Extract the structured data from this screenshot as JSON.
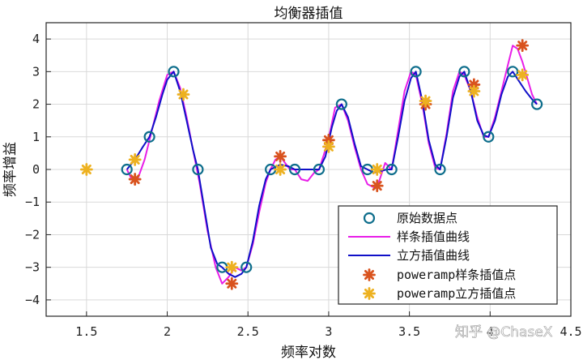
{
  "chart_data": {
    "type": "line",
    "title": "均衡器插值",
    "xlabel": "频率对数",
    "ylabel": "频率增益",
    "xlim": [
      1.25,
      4.5
    ],
    "ylim": [
      -4.5,
      4.5
    ],
    "xticks": [
      1.5,
      2,
      2.5,
      3,
      3.5,
      4,
      4.5
    ],
    "xtick_labels": [
      "1.5",
      "2",
      "2.5",
      "3",
      "3.5",
      "4",
      "4.5"
    ],
    "yticks": [
      -4,
      -3,
      -2,
      -1,
      0,
      1,
      2,
      3,
      4
    ],
    "ytick_labels": [
      "−4",
      "−3",
      "−2",
      "−1",
      "0",
      "1",
      "2",
      "3",
      "4"
    ],
    "grid": true,
    "legend_position": "bottom-right",
    "series": [
      {
        "name": "原始数据点",
        "kind": "markers-circle",
        "color": "#0e6e8c",
        "x": [
          1.75,
          1.89,
          2.04,
          2.19,
          2.34,
          2.49,
          2.64,
          2.79,
          2.94,
          3.08,
          3.24,
          3.39,
          3.54,
          3.69,
          3.84,
          3.99,
          4.14,
          4.29
        ],
        "y": [
          0,
          1,
          3,
          0,
          -3,
          -3,
          0,
          0,
          0,
          2,
          0,
          0,
          3,
          0,
          3,
          1,
          3,
          2
        ]
      },
      {
        "name": "样条插值曲线",
        "kind": "line",
        "color": "#e81ee8",
        "x": [
          1.75,
          1.78,
          1.82,
          1.86,
          1.9,
          1.95,
          2.0,
          2.04,
          2.08,
          2.12,
          2.16,
          2.2,
          2.25,
          2.3,
          2.34,
          2.38,
          2.42,
          2.46,
          2.49,
          2.53,
          2.57,
          2.61,
          2.64,
          2.67,
          2.7,
          2.73,
          2.76,
          2.79,
          2.83,
          2.87,
          2.91,
          2.94,
          2.97,
          3.0,
          3.04,
          3.08,
          3.12,
          3.16,
          3.2,
          3.24,
          3.28,
          3.31,
          3.35,
          3.39,
          3.43,
          3.47,
          3.51,
          3.54,
          3.58,
          3.62,
          3.66,
          3.69,
          3.73,
          3.77,
          3.81,
          3.84,
          3.88,
          3.92,
          3.96,
          3.99,
          4.03,
          4.07,
          4.11,
          4.14,
          4.17,
          4.2,
          4.23,
          4.26,
          4.29
        ],
        "y": [
          0,
          -0.3,
          -0.25,
          0.3,
          1.1,
          2.1,
          2.9,
          3.0,
          2.5,
          1.6,
          0.6,
          -0.4,
          -1.9,
          -3.0,
          -3.5,
          -3.3,
          -3.0,
          -3.1,
          -3.0,
          -2.3,
          -1.3,
          -0.4,
          0,
          0.3,
          0.4,
          0.2,
          0.0,
          0,
          -0.3,
          -0.35,
          -0.1,
          0,
          0.45,
          0.95,
          1.9,
          2.0,
          1.5,
          0.7,
          0.0,
          -0.45,
          -0.55,
          -0.4,
          0.2,
          0,
          1.2,
          2.4,
          3.0,
          2.9,
          2.0,
          0.8,
          0.05,
          0,
          1.1,
          2.4,
          3.0,
          2.9,
          2.4,
          1.6,
          1.0,
          1.0,
          1.6,
          2.4,
          3.2,
          3.8,
          3.7,
          3.3,
          2.8,
          2.3,
          2.0
        ]
      },
      {
        "name": "立方插值曲线",
        "kind": "line",
        "color": "#1010c8",
        "x": [
          1.75,
          1.8,
          1.85,
          1.89,
          1.93,
          1.97,
          2.0,
          2.04,
          2.08,
          2.12,
          2.16,
          2.19,
          2.23,
          2.27,
          2.31,
          2.34,
          2.38,
          2.42,
          2.46,
          2.49,
          2.53,
          2.57,
          2.61,
          2.64,
          2.7,
          2.75,
          2.79,
          2.84,
          2.89,
          2.94,
          2.98,
          3.02,
          3.05,
          3.08,
          3.12,
          3.16,
          3.2,
          3.24,
          3.28,
          3.32,
          3.36,
          3.39,
          3.43,
          3.47,
          3.51,
          3.54,
          3.58,
          3.62,
          3.66,
          3.69,
          3.73,
          3.77,
          3.81,
          3.84,
          3.88,
          3.92,
          3.96,
          3.99,
          4.03,
          4.07,
          4.11,
          4.14,
          4.18,
          4.22,
          4.26,
          4.29
        ],
        "y": [
          0,
          0.3,
          0.7,
          1.0,
          1.6,
          2.3,
          2.75,
          3.0,
          2.4,
          1.5,
          0.6,
          0,
          -1.2,
          -2.4,
          -2.9,
          -3.0,
          -3.2,
          -3.3,
          -3.2,
          -3.0,
          -2.2,
          -1.1,
          -0.3,
          0,
          0.15,
          0.1,
          0,
          0.0,
          0.0,
          0,
          0.4,
          1.3,
          1.8,
          2.0,
          1.6,
          0.8,
          0.1,
          0,
          -0.1,
          -0.05,
          0.0,
          0,
          1.0,
          2.1,
          2.8,
          3.0,
          2.1,
          0.9,
          0.15,
          0,
          1.0,
          2.2,
          2.85,
          3.0,
          2.4,
          1.5,
          1.05,
          1.0,
          1.5,
          2.3,
          2.85,
          3.0,
          2.7,
          2.4,
          2.15,
          2.0
        ]
      },
      {
        "name": "poweramp样条插值点",
        "kind": "markers-star",
        "color": "#d9531e",
        "x": [
          1.8,
          2.4,
          2.7,
          3.0,
          3.3,
          3.6,
          3.9,
          4.2
        ],
        "y": [
          -0.3,
          -3.5,
          0.4,
          0.9,
          -0.5,
          2.0,
          2.6,
          3.8
        ]
      },
      {
        "name": "poweramp立方插值点",
        "kind": "markers-star",
        "color": "#edb120",
        "x": [
          1.5,
          1.8,
          2.1,
          2.4,
          2.7,
          3.0,
          3.3,
          3.6,
          3.9,
          4.2
        ],
        "y": [
          0,
          0.3,
          2.3,
          -3.0,
          0,
          0.7,
          0,
          2.1,
          2.4,
          2.9
        ]
      }
    ]
  },
  "watermark": {
    "text": "知乎 @ChaseX"
  }
}
